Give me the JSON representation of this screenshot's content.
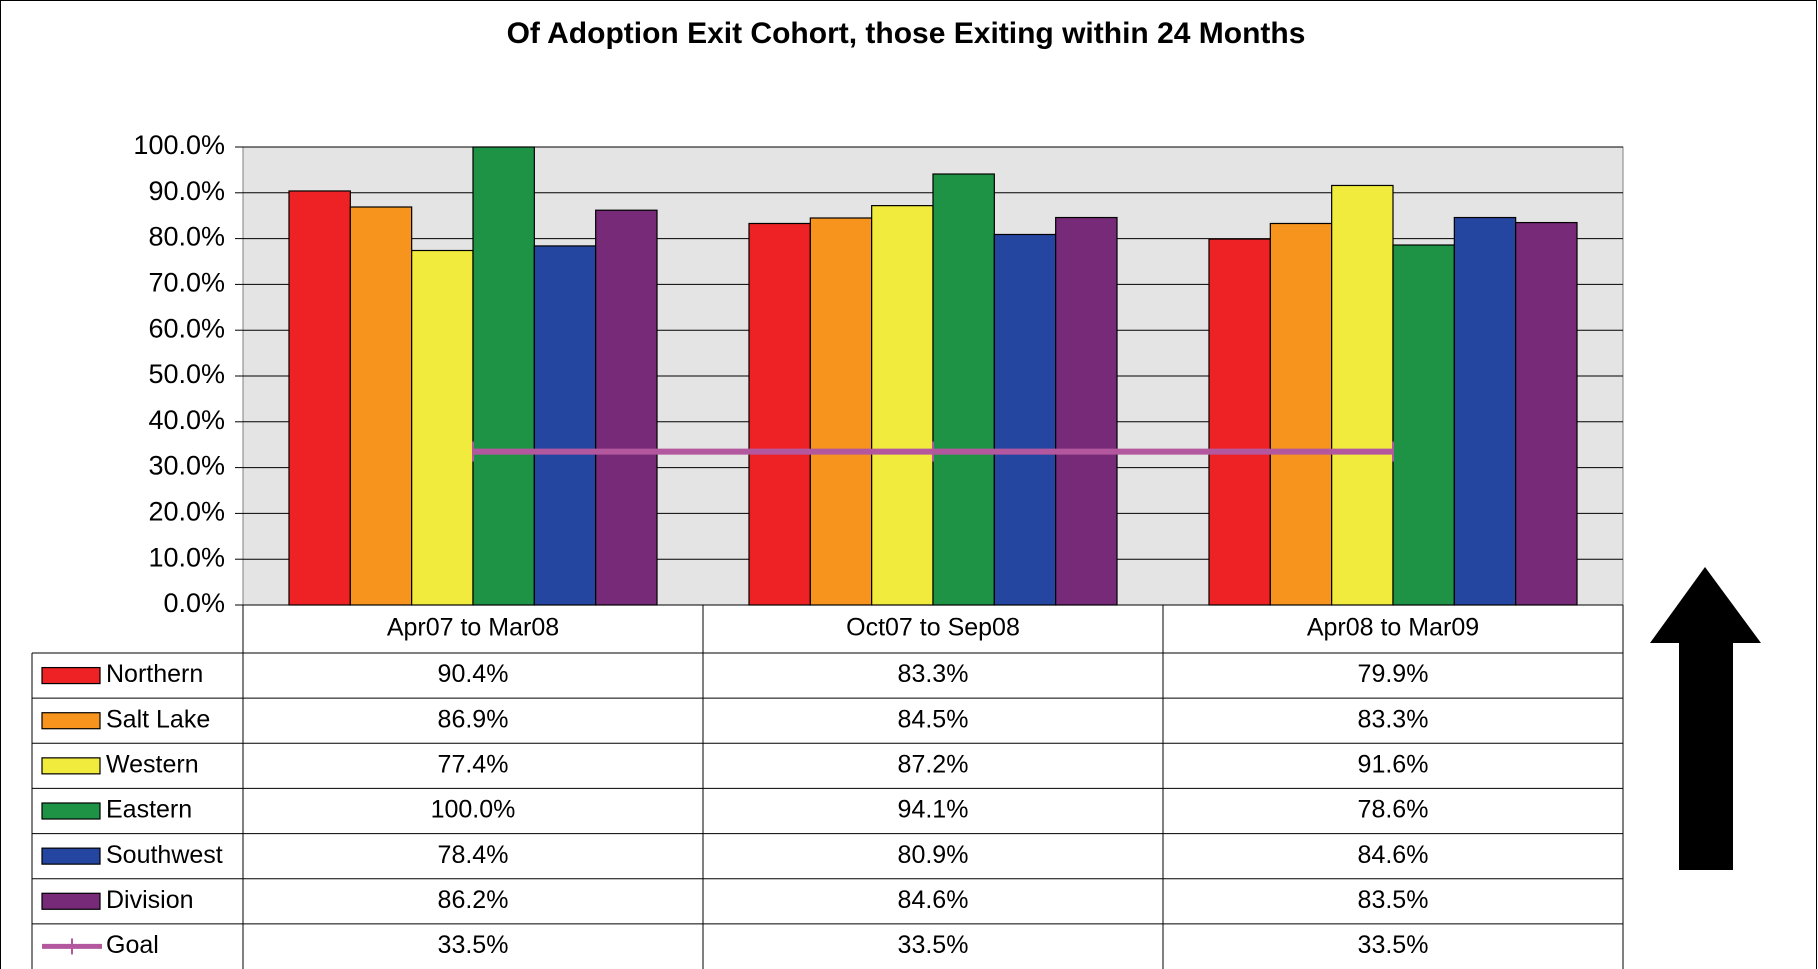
{
  "chart_data": {
    "type": "bar",
    "title": "Of Adoption Exit Cohort, those Exiting within 24 Months",
    "categories": [
      "Apr07 to Mar08",
      "Oct07 to Sep08",
      "Apr08 to Mar09"
    ],
    "series": [
      {
        "name": "Northern",
        "color": "#ee2224",
        "values": [
          90.4,
          83.3,
          79.9
        ],
        "value_labels": [
          "90.4%",
          "83.3%",
          "79.9%"
        ]
      },
      {
        "name": "Salt Lake",
        "color": "#f7941d",
        "values": [
          86.9,
          84.5,
          83.3
        ],
        "value_labels": [
          "86.9%",
          "84.5%",
          "83.3%"
        ]
      },
      {
        "name": "Western",
        "color": "#f0eb3c",
        "values": [
          77.4,
          87.2,
          91.6
        ],
        "value_labels": [
          "77.4%",
          "87.2%",
          "91.6%"
        ]
      },
      {
        "name": "Eastern",
        "color": "#1f9345",
        "values": [
          100.0,
          94.1,
          78.6
        ],
        "value_labels": [
          "100.0%",
          "94.1%",
          "78.6%"
        ]
      },
      {
        "name": "Southwest",
        "color": "#2546a0",
        "values": [
          78.4,
          80.9,
          84.6
        ],
        "value_labels": [
          "78.4%",
          "80.9%",
          "84.6%"
        ]
      },
      {
        "name": "Division",
        "color": "#772a78",
        "values": [
          86.2,
          84.6,
          83.5
        ],
        "value_labels": [
          "86.2%",
          "84.6%",
          "83.5%"
        ]
      },
      {
        "name": "Goal",
        "type": "line",
        "color": "#b3589f",
        "values": [
          33.5,
          33.5,
          33.5
        ],
        "value_labels": [
          "33.5%",
          "33.5%",
          "33.5%"
        ]
      }
    ],
    "ylim": [
      0,
      100
    ],
    "yticks": [
      {
        "value": 0,
        "label": "0.0%"
      },
      {
        "value": 10,
        "label": "10.0%"
      },
      {
        "value": 20,
        "label": "20.0%"
      },
      {
        "value": 30,
        "label": "30.0%"
      },
      {
        "value": 40,
        "label": "40.0%"
      },
      {
        "value": 50,
        "label": "50.0%"
      },
      {
        "value": 60,
        "label": "60.0%"
      },
      {
        "value": 70,
        "label": "70.0%"
      },
      {
        "value": 80,
        "label": "80.0%"
      },
      {
        "value": 90,
        "label": "90.0%"
      },
      {
        "value": 100,
        "label": "100.0%"
      }
    ],
    "grid": true
  }
}
